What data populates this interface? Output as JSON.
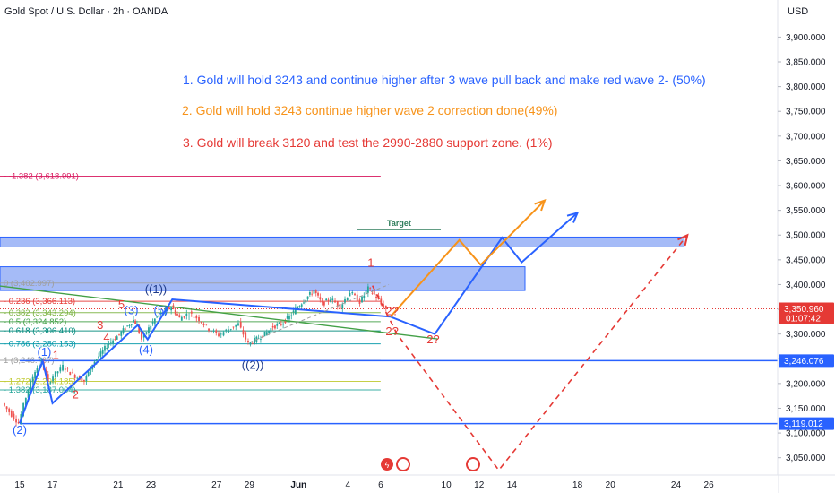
{
  "chart_title": "Gold Spot / U.S. Dollar · 2h · OANDA",
  "currency": "USD",
  "colors": {
    "blue": "#2962ff",
    "orange": "#f7931a",
    "red": "#e53935",
    "green": "#43a047",
    "pink": "#d81b60",
    "band": "#5b84f0",
    "up_candle": "#26a69a",
    "down_candle": "#ef5350"
  },
  "annotations": [
    {
      "text": "1. Gold will hold 3243 and continue higher after 3 wave pull back and make red wave 2- (50%)",
      "color": "#2962ff"
    },
    {
      "text": "2. Gold will hold 3243  continue higher wave 2 correction done(49%)",
      "color": "#f7931a"
    },
    {
      "text": "3. Gold will break 3120 and test the 2990-2880 support zone. (1%)",
      "color": "#e53935"
    }
  ],
  "target_label": "Target",
  "chart_data": {
    "type": "line",
    "title": "Gold Spot / U.S. Dollar · 2h · OANDA",
    "ylabel": "USD",
    "ylim": [
      3015,
      3975
    ],
    "y_ticks": [
      3050,
      3100,
      3150,
      3200,
      3250,
      3300,
      3350,
      3400,
      3450,
      3500,
      3550,
      3600,
      3650,
      3700,
      3750,
      3800,
      3850,
      3900
    ],
    "y_tick_labels": [
      "3,050.000",
      "3,100.000",
      "3,150.000",
      "3,200.000",
      "3,250.000",
      "3,300.000",
      "3,350.000",
      "3,400.000",
      "3,450.000",
      "3,500.000",
      "3,550.000",
      "3,600.000",
      "3,650.000",
      "3,700.000",
      "3,750.000",
      "3,800.000",
      "3,850.000",
      "3,900.000"
    ],
    "x_tick_labels": [
      "15",
      "17",
      "21",
      "23",
      "27",
      "29",
      "Jun",
      "4",
      "6",
      "10",
      "12",
      "14",
      "18",
      "20",
      "24",
      "26"
    ],
    "x_tick_days": [
      0,
      2,
      6,
      8,
      12,
      14,
      17,
      20,
      22,
      26,
      28,
      30,
      34,
      36,
      40,
      42
    ],
    "x_day_range": [
      -1.2,
      46.2
    ],
    "grid": false,
    "price_labels": [
      {
        "value": 3350.96,
        "label": "3,350.960",
        "sublabel": "01:07:42",
        "color": "#e53935"
      },
      {
        "value": 3246.076,
        "label": "3,246.076",
        "color": "#2962ff"
      },
      {
        "value": 3119.012,
        "label": "3,119.012",
        "color": "#2962ff"
      }
    ],
    "horizontal_lines": [
      {
        "value": 3246.076,
        "color": "#2962ff"
      },
      {
        "value": 3119.012,
        "color": "#2962ff"
      }
    ],
    "zones": [
      {
        "from_day": -1.2,
        "to_day": 40.5,
        "low": 3476,
        "high": 3496,
        "color": "#5b84f0"
      },
      {
        "from_day": -1.2,
        "to_day": 30.8,
        "low": 3388,
        "high": 3436,
        "color": "#5b84f0"
      }
    ],
    "fib_levels": [
      {
        "ratio": "-1.382",
        "value": 3618.991,
        "label": "- -1.382 (3,618.991)",
        "color": "#d81b60"
      },
      {
        "ratio": "0",
        "value": 3402.997,
        "label": "0 (3,402.997)",
        "color": "#9e9e9e"
      },
      {
        "ratio": "0.236",
        "value": 3366.113,
        "label": "- 0.236 (3,366.113)",
        "color": "#e53935"
      },
      {
        "ratio": "0.382",
        "value": 3343.294,
        "label": "- 0.382 (3,343.294)",
        "color": "#7cb342"
      },
      {
        "ratio": "0.5",
        "value": 3324.852,
        "label": "- 0.5 (3,324.852)",
        "color": "#43a047"
      },
      {
        "ratio": "0.618",
        "value": 3306.41,
        "label": "- 0.618 (3,306.410)",
        "color": "#00897b"
      },
      {
        "ratio": "0.786",
        "value": 3280.153,
        "label": "- 0.786 (3,280.153)",
        "color": "#0097a7"
      },
      {
        "ratio": "1",
        "value": 3246.767,
        "label": "1 (3,246.767)",
        "color": "#9e9e9e"
      },
      {
        "ratio": "1.272",
        "value": 3204.185,
        "label": "- 1.272 (3,204.185)",
        "color": "#c0ca33"
      },
      {
        "ratio": "1.382",
        "value": 3187.004,
        "label": "- 1.382 (3,187.004)",
        "color": "#26a69a"
      }
    ],
    "series": [
      {
        "name": "price",
        "color": "#26a69a",
        "points": [
          [
            -1,
            3160
          ],
          [
            0,
            3120
          ],
          [
            0.6,
            3190
          ],
          [
            1,
            3226
          ],
          [
            1.4,
            3245
          ],
          [
            1.8,
            3200
          ],
          [
            2.1,
            3215
          ],
          [
            2.7,
            3235
          ],
          [
            3.3,
            3218
          ],
          [
            4,
            3205
          ],
          [
            4.5,
            3240
          ],
          [
            5,
            3260
          ],
          [
            5.5,
            3282
          ],
          [
            6,
            3295
          ],
          [
            6.5,
            3312
          ],
          [
            7,
            3328
          ],
          [
            7.2,
            3318
          ],
          [
            7.5,
            3289
          ],
          [
            7.8,
            3305
          ],
          [
            8.3,
            3330
          ],
          [
            8.8,
            3345
          ],
          [
            9.3,
            3355
          ],
          [
            9.8,
            3332
          ],
          [
            10.4,
            3342
          ],
          [
            11,
            3330
          ],
          [
            11.6,
            3310
          ],
          [
            12.2,
            3298
          ],
          [
            12.8,
            3310
          ],
          [
            13.4,
            3320
          ],
          [
            14,
            3280
          ],
          [
            14.5,
            3290
          ],
          [
            15,
            3300
          ],
          [
            15.5,
            3315
          ],
          [
            16,
            3320
          ],
          [
            16.5,
            3335
          ],
          [
            17,
            3355
          ],
          [
            17.5,
            3372
          ],
          [
            18,
            3388
          ],
          [
            18.5,
            3360
          ],
          [
            19,
            3372
          ],
          [
            19.6,
            3355
          ],
          [
            20.2,
            3385
          ],
          [
            20.8,
            3365
          ],
          [
            21.3,
            3392
          ],
          [
            21.8,
            3375
          ],
          [
            22.1,
            3360
          ],
          [
            22.4,
            3350.96
          ]
        ]
      },
      {
        "name": "blue path",
        "color": "#2962ff",
        "points": [
          [
            0,
            3120
          ],
          [
            1.4,
            3246
          ],
          [
            2,
            3160
          ],
          [
            7.2,
            3318
          ],
          [
            7.8,
            3289
          ],
          [
            9.3,
            3370
          ],
          [
            22.6,
            3335
          ],
          [
            25.3,
            3300
          ],
          [
            29.4,
            3495
          ],
          [
            30.6,
            3445
          ],
          [
            34,
            3545
          ]
        ]
      },
      {
        "name": "orange path",
        "color": "#f7931a",
        "points": [
          [
            22.6,
            3335
          ],
          [
            26.8,
            3490
          ],
          [
            28.1,
            3440
          ],
          [
            32,
            3570
          ]
        ]
      },
      {
        "name": "red dashed path",
        "color": "#e53935",
        "points": [
          [
            21.5,
            3398
          ],
          [
            23,
            3300
          ],
          [
            29.2,
            3025
          ],
          [
            40.7,
            3500
          ]
        ]
      },
      {
        "name": "green trendline",
        "color": "#43a047",
        "points": [
          [
            -1.2,
            3397
          ],
          [
            25.5,
            3290
          ]
        ]
      }
    ],
    "wave_labels": [
      {
        "text": "(1)",
        "color": "#2962ff"
      },
      {
        "text": "(2)",
        "color": "#2962ff"
      },
      {
        "text": "(3)",
        "color": "#2962ff"
      },
      {
        "text": "(4)",
        "color": "#2962ff"
      },
      {
        "text": "(5)",
        "color": "#2962ff"
      },
      {
        "text": "((1))",
        "color": "#1e3a8a"
      },
      {
        "text": "((2))",
        "color": "#1e3a8a"
      },
      {
        "text": "1",
        "color": "#e53935"
      },
      {
        "text": "2",
        "color": "#e53935"
      },
      {
        "text": "3",
        "color": "#e53935"
      },
      {
        "text": "4",
        "color": "#e53935"
      },
      {
        "text": "5",
        "color": "#e53935"
      },
      {
        "text": "1",
        "color": "#e53935"
      },
      {
        "text": "2?",
        "color": "#e53935"
      },
      {
        "text": "2?",
        "color": "#e53935"
      },
      {
        "text": "2?",
        "color": "#e53935"
      }
    ]
  }
}
